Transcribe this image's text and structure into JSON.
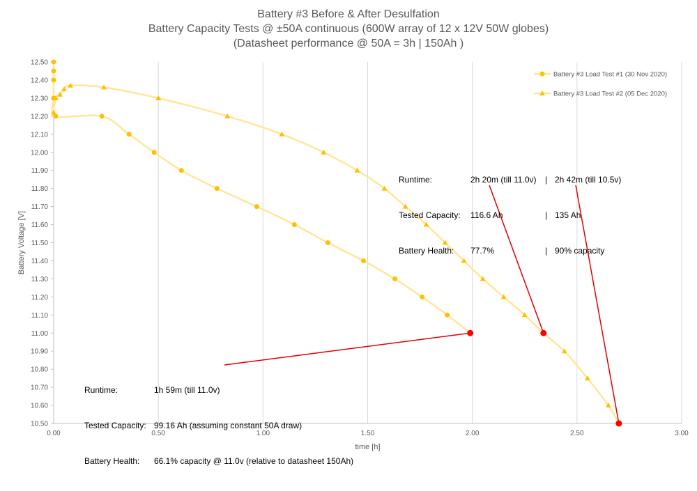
{
  "chart_data": {
    "type": "scatter",
    "title": "Battery #3 Before & After Desulfation",
    "subtitle": "Battery Capacity Tests @ ±50A continuous (600W array of 12 x 12V 50W globes)",
    "subtitle2": "(Datasheet performance @ 50A = 3h | 150Ah )",
    "xlabel": "time [h]",
    "ylabel": "Battery Voltage [V]",
    "xlim": [
      0,
      3
    ],
    "ylim": [
      10.5,
      12.5
    ],
    "x_ticks": [
      "0.00",
      "0.50",
      "1.00",
      "1.50",
      "2.00",
      "2.50",
      "3.00"
    ],
    "y_ticks": [
      "10.50",
      "10.60",
      "10.70",
      "10.80",
      "10.90",
      "11.00",
      "11.10",
      "11.20",
      "11.30",
      "11.40",
      "11.50",
      "11.60",
      "11.70",
      "11.80",
      "11.90",
      "12.00",
      "12.10",
      "12.20",
      "12.30",
      "12.40",
      "12.50"
    ],
    "grid": "vertical",
    "legend_position": "top-right",
    "series": [
      {
        "name": "Battery #3 Load Test #1 (30 Nov 2020)",
        "marker": "circle",
        "color": "#FFC000",
        "line_color": "#FFE699",
        "x": [
          0.0,
          0.0,
          0.0,
          0.0,
          0.01,
          0.23,
          0.36,
          0.48,
          0.61,
          0.78,
          0.97,
          1.15,
          1.31,
          1.48,
          1.63,
          1.76,
          1.88,
          1.99
        ],
        "y": [
          12.5,
          12.45,
          12.4,
          12.3,
          12.2,
          12.2,
          12.1,
          12.0,
          11.9,
          11.8,
          11.7,
          11.6,
          11.5,
          11.4,
          11.3,
          11.2,
          11.1,
          11.0
        ]
      },
      {
        "name": "Battery #3 Load Test #2 (05 Dec 2020)",
        "marker": "triangle",
        "color": "#FFC000",
        "line_color": "#FFE699",
        "x": [
          0.0,
          0.01,
          0.03,
          0.05,
          0.08,
          0.24,
          0.5,
          0.83,
          1.09,
          1.29,
          1.45,
          1.58,
          1.68,
          1.78,
          1.87,
          1.96,
          2.05,
          2.15,
          2.25,
          2.34,
          2.44,
          2.55,
          2.65,
          2.7
        ],
        "y": [
          12.22,
          12.3,
          12.32,
          12.35,
          12.37,
          12.36,
          12.3,
          12.2,
          12.1,
          12.0,
          11.9,
          11.8,
          11.7,
          11.6,
          11.5,
          11.4,
          11.3,
          11.2,
          11.1,
          11.0,
          10.9,
          10.75,
          10.6,
          10.5
        ]
      }
    ],
    "highlight_points": [
      {
        "x": 1.99,
        "y": 11.0,
        "color": "#FF0000"
      },
      {
        "x": 2.34,
        "y": 11.0,
        "color": "#FF0000"
      },
      {
        "x": 2.7,
        "y": 10.5,
        "color": "#FF0000"
      }
    ]
  },
  "annotations": {
    "test1": {
      "rows": [
        {
          "label": "Runtime:",
          "value": "1h 59m (till 11.0v)"
        },
        {
          "label": "Tested Capacity:",
          "value": "99.16 Ah (assuming constant 50A draw)"
        },
        {
          "label": "Battery Health:",
          "value": "66.1% capacity @ 11.0v (relative to datasheet 150Ah)"
        }
      ]
    },
    "test2": {
      "rows": [
        {
          "label": "Runtime:",
          "value": "2h 20m (till 11.0v)",
          "sep": "|",
          "value2": "2h 42m (till 10.5v)"
        },
        {
          "label": "Tested Capacity:",
          "value": "116.6 Ah",
          "sep": "|",
          "value2": "135 Ah"
        },
        {
          "label": "Battery Health:",
          "value": "77.7%",
          "sep": "|",
          "value2": "90% capacity"
        }
      ]
    }
  }
}
